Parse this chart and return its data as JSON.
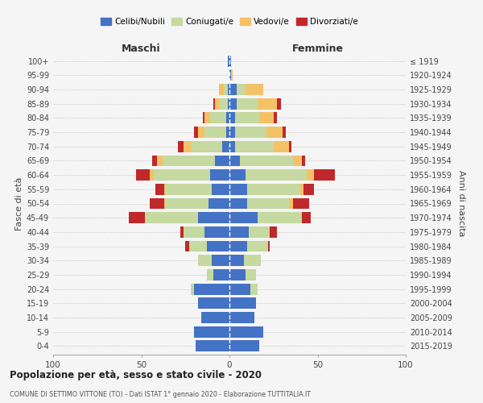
{
  "age_groups": [
    "0-4",
    "5-9",
    "10-14",
    "15-19",
    "20-24",
    "25-29",
    "30-34",
    "35-39",
    "40-44",
    "45-49",
    "50-54",
    "55-59",
    "60-64",
    "65-69",
    "70-74",
    "75-79",
    "80-84",
    "85-89",
    "90-94",
    "95-99",
    "100+"
  ],
  "birth_years": [
    "2015-2019",
    "2010-2014",
    "2005-2009",
    "2000-2004",
    "1995-1999",
    "1990-1994",
    "1985-1989",
    "1980-1984",
    "1975-1979",
    "1970-1974",
    "1965-1969",
    "1960-1964",
    "1955-1959",
    "1950-1954",
    "1945-1949",
    "1940-1944",
    "1935-1939",
    "1930-1934",
    "1925-1929",
    "1920-1924",
    "≤ 1919"
  ],
  "colors": {
    "celibi": "#4472C4",
    "coniugati": "#C5D9A0",
    "vedovi": "#F5C167",
    "divorziati": "#C0292A"
  },
  "males": {
    "celibi": [
      19,
      20,
      16,
      18,
      20,
      9,
      10,
      13,
      14,
      18,
      12,
      10,
      11,
      8,
      4,
      2,
      2,
      1,
      1,
      0,
      1
    ],
    "coniugati": [
      0,
      0,
      0,
      0,
      2,
      4,
      8,
      10,
      12,
      30,
      24,
      26,
      32,
      30,
      18,
      12,
      9,
      5,
      2,
      0,
      0
    ],
    "vedovi": [
      0,
      0,
      0,
      0,
      0,
      0,
      0,
      0,
      0,
      0,
      1,
      1,
      2,
      3,
      4,
      4,
      3,
      2,
      3,
      0,
      0
    ],
    "divorziati": [
      0,
      0,
      0,
      0,
      0,
      0,
      0,
      2,
      2,
      9,
      8,
      5,
      8,
      3,
      3,
      2,
      1,
      1,
      0,
      0,
      0
    ]
  },
  "females": {
    "celibi": [
      17,
      19,
      14,
      15,
      12,
      9,
      8,
      10,
      11,
      16,
      10,
      10,
      9,
      6,
      3,
      3,
      3,
      4,
      4,
      1,
      1
    ],
    "coniugati": [
      0,
      0,
      0,
      0,
      4,
      6,
      10,
      12,
      12,
      25,
      24,
      30,
      35,
      30,
      22,
      18,
      14,
      12,
      5,
      0,
      0
    ],
    "vedovi": [
      0,
      0,
      0,
      0,
      0,
      0,
      0,
      0,
      0,
      0,
      2,
      2,
      4,
      5,
      9,
      9,
      8,
      11,
      10,
      1,
      0
    ],
    "divorziati": [
      0,
      0,
      0,
      0,
      0,
      0,
      0,
      1,
      4,
      5,
      9,
      6,
      12,
      2,
      1,
      2,
      2,
      2,
      0,
      0,
      0
    ]
  },
  "title": "Popolazione per età, sesso e stato civile - 2020",
  "subtitle": "COMUNE DI SETTIMO VITTONE (TO) - Dati ISTAT 1° gennaio 2020 - Elaborazione TUTTITALIA.IT",
  "xlabel_left": "Maschi",
  "xlabel_right": "Femmine",
  "ylabel_left": "Fasce di età",
  "ylabel_right": "Anni di nascita",
  "xlim": 100,
  "bg_color": "#f5f5f5",
  "grid_color": "#cccccc"
}
